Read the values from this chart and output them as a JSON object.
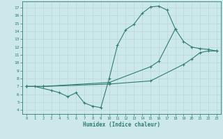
{
  "color": "#2e7d6e",
  "bg_color": "#cce8ea",
  "grid_color": "#b8d8da",
  "xlabel": "Humidex (Indice chaleur)",
  "xlim": [
    -0.5,
    23.5
  ],
  "ylim": [
    3.5,
    17.8
  ],
  "yticks": [
    4,
    5,
    6,
    7,
    8,
    9,
    10,
    11,
    12,
    13,
    14,
    15,
    16,
    17
  ],
  "xticks": [
    0,
    1,
    2,
    3,
    4,
    5,
    6,
    7,
    8,
    9,
    10,
    11,
    12,
    13,
    14,
    15,
    16,
    17,
    18,
    19,
    20,
    21,
    22,
    23
  ],
  "line1_x": [
    0,
    1,
    3,
    4,
    5,
    6,
    7,
    8,
    9,
    10,
    11,
    12,
    13,
    14,
    15,
    16,
    17,
    18
  ],
  "line1_y": [
    7.0,
    7.0,
    6.5,
    6.2,
    5.7,
    6.2,
    4.9,
    4.5,
    4.3,
    8.0,
    12.2,
    14.2,
    14.9,
    16.3,
    17.1,
    17.2,
    16.7,
    14.3
  ],
  "line2_x": [
    0,
    2,
    10,
    15,
    16,
    18,
    19,
    20,
    21,
    22,
    23
  ],
  "line2_y": [
    7.0,
    7.0,
    7.5,
    9.5,
    10.2,
    14.3,
    12.7,
    12.0,
    11.8,
    11.7,
    11.5
  ],
  "line3_x": [
    0,
    2,
    10,
    15,
    19,
    20,
    21,
    22,
    23
  ],
  "line3_y": [
    7.0,
    7.0,
    7.3,
    7.7,
    9.8,
    10.5,
    11.3,
    11.5,
    11.5
  ]
}
